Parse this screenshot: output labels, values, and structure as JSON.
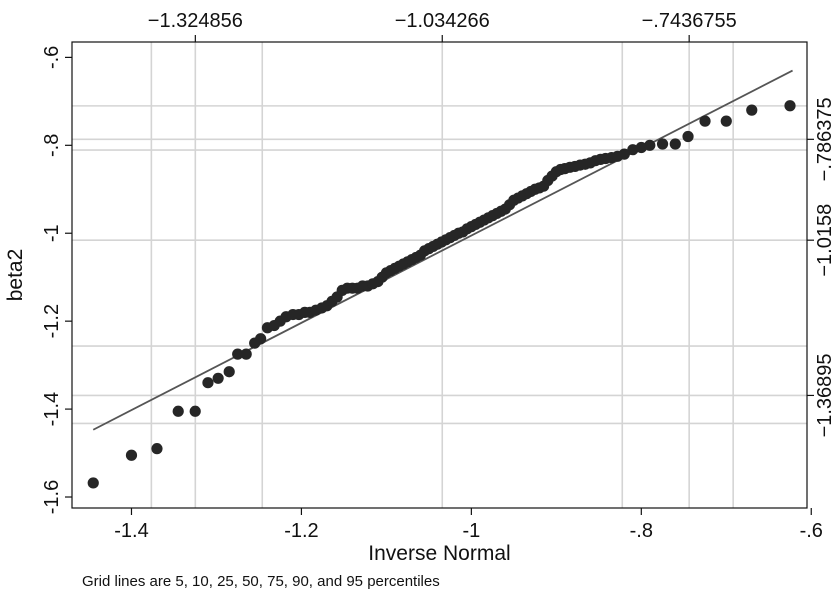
{
  "chart_data": {
    "type": "scatter",
    "title": "",
    "xlabel": "Inverse Normal",
    "ylabel": "beta2",
    "xlim": [
      -1.47,
      -0.605
    ],
    "ylim": [
      -1.625,
      -0.565
    ],
    "xticks": [
      -1.4,
      -1.2,
      -1,
      -0.8,
      -0.6
    ],
    "xtick_labels": [
      "-1.4",
      "-1.2",
      "-1",
      "-.8",
      "-.6"
    ],
    "yticks": [
      -1.6,
      -1.4,
      -1.2,
      -1,
      -0.8,
      -0.6
    ],
    "ytick_labels": [
      "-1.6",
      "-1.4",
      "-1.2",
      "-1",
      "-.8",
      "-.6"
    ],
    "top_axis": {
      "ticks": [
        -1.324856,
        -1.034266,
        -0.7436755
      ],
      "labels": [
        "−1.324856",
        "−1.034266",
        "−.7436755"
      ]
    },
    "right_axis": {
      "ticks": [
        -1.36895,
        -1.0158,
        -0.786375
      ],
      "labels": [
        "−1.36895",
        "−1.0158",
        "−.786375"
      ]
    },
    "vertical_grid_x": [
      -1.3766,
      -1.324856,
      -1.2461,
      -1.034266,
      -0.8224,
      -0.7436755,
      -0.6919
    ],
    "horizontal_grid_y": [
      -1.4326,
      -1.36895,
      -1.2567,
      -1.0158,
      -0.8109,
      -0.786375,
      -0.7103
    ],
    "reference_line": {
      "x": [
        -1.445,
        -0.622
      ],
      "y": [
        -1.447,
        -0.63
      ]
    },
    "marker_color": "#262626",
    "line_color": "#555555",
    "grid_color": "#d4d4d4",
    "note": "Grid lines are 5, 10, 25, 50, 75, 90, and 95 percentiles",
    "points": [
      [
        -1.445,
        -1.568
      ],
      [
        -1.4,
        -1.505
      ],
      [
        -1.37,
        -1.49
      ],
      [
        -1.345,
        -1.405
      ],
      [
        -1.325,
        -1.405
      ],
      [
        -1.31,
        -1.34
      ],
      [
        -1.298,
        -1.33
      ],
      [
        -1.285,
        -1.315
      ],
      [
        -1.275,
        -1.275
      ],
      [
        -1.265,
        -1.275
      ],
      [
        -1.255,
        -1.25
      ],
      [
        -1.248,
        -1.24
      ],
      [
        -1.24,
        -1.215
      ],
      [
        -1.232,
        -1.21
      ],
      [
        -1.225,
        -1.2
      ],
      [
        -1.218,
        -1.19
      ],
      [
        -1.21,
        -1.185
      ],
      [
        -1.203,
        -1.185
      ],
      [
        -1.196,
        -1.18
      ],
      [
        -1.19,
        -1.18
      ],
      [
        -1.183,
        -1.175
      ],
      [
        -1.176,
        -1.17
      ],
      [
        -1.17,
        -1.165
      ],
      [
        -1.164,
        -1.155
      ],
      [
        -1.158,
        -1.145
      ],
      [
        -1.152,
        -1.13
      ],
      [
        -1.146,
        -1.125
      ],
      [
        -1.14,
        -1.125
      ],
      [
        -1.134,
        -1.125
      ],
      [
        -1.128,
        -1.12
      ],
      [
        -1.122,
        -1.12
      ],
      [
        -1.116,
        -1.115
      ],
      [
        -1.11,
        -1.11
      ],
      [
        -1.105,
        -1.1
      ],
      [
        -1.1,
        -1.09
      ],
      [
        -1.095,
        -1.085
      ],
      [
        -1.09,
        -1.08
      ],
      [
        -1.085,
        -1.075
      ],
      [
        -1.08,
        -1.07
      ],
      [
        -1.075,
        -1.065
      ],
      [
        -1.07,
        -1.06
      ],
      [
        -1.065,
        -1.055
      ],
      [
        -1.06,
        -1.05
      ],
      [
        -1.055,
        -1.04
      ],
      [
        -1.05,
        -1.035
      ],
      [
        -1.045,
        -1.03
      ],
      [
        -1.04,
        -1.025
      ],
      [
        -1.035,
        -1.02
      ],
      [
        -1.03,
        -1.015
      ],
      [
        -1.025,
        -1.01
      ],
      [
        -1.02,
        -1.005
      ],
      [
        -1.015,
        -1.0
      ],
      [
        -1.01,
        -0.997
      ],
      [
        -1.005,
        -0.99
      ],
      [
        -1.0,
        -0.985
      ],
      [
        -0.995,
        -0.98
      ],
      [
        -0.99,
        -0.975
      ],
      [
        -0.985,
        -0.97
      ],
      [
        -0.98,
        -0.965
      ],
      [
        -0.975,
        -0.96
      ],
      [
        -0.97,
        -0.955
      ],
      [
        -0.965,
        -0.95
      ],
      [
        -0.96,
        -0.945
      ],
      [
        -0.955,
        -0.935
      ],
      [
        -0.95,
        -0.925
      ],
      [
        -0.945,
        -0.92
      ],
      [
        -0.94,
        -0.915
      ],
      [
        -0.935,
        -0.91
      ],
      [
        -0.93,
        -0.905
      ],
      [
        -0.925,
        -0.9
      ],
      [
        -0.92,
        -0.897
      ],
      [
        -0.915,
        -0.893
      ],
      [
        -0.91,
        -0.88
      ],
      [
        -0.905,
        -0.87
      ],
      [
        -0.9,
        -0.86
      ],
      [
        -0.895,
        -0.855
      ],
      [
        -0.89,
        -0.853
      ],
      [
        -0.884,
        -0.85
      ],
      [
        -0.878,
        -0.848
      ],
      [
        -0.872,
        -0.845
      ],
      [
        -0.866,
        -0.843
      ],
      [
        -0.86,
        -0.84
      ],
      [
        -0.854,
        -0.835
      ],
      [
        -0.848,
        -0.832
      ],
      [
        -0.842,
        -0.83
      ],
      [
        -0.835,
        -0.828
      ],
      [
        -0.828,
        -0.825
      ],
      [
        -0.82,
        -0.82
      ],
      [
        -0.81,
        -0.81
      ],
      [
        -0.8,
        -0.805
      ],
      [
        -0.79,
        -0.8
      ],
      [
        -0.775,
        -0.797
      ],
      [
        -0.76,
        -0.797
      ],
      [
        -0.745,
        -0.78
      ],
      [
        -0.725,
        -0.745
      ],
      [
        -0.7,
        -0.745
      ],
      [
        -0.67,
        -0.72
      ],
      [
        -0.625,
        -0.71
      ]
    ]
  }
}
